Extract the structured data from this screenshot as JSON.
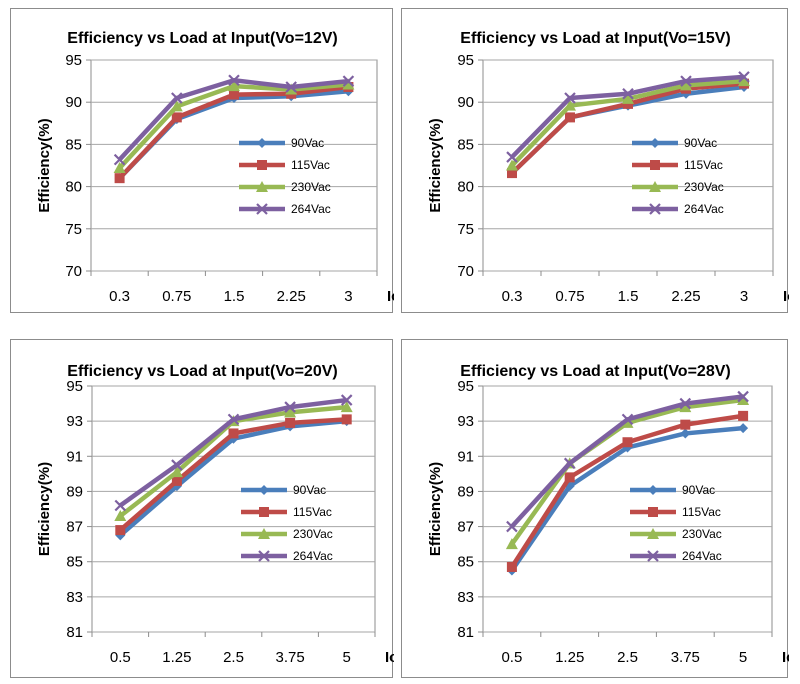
{
  "chart_data": [
    {
      "type": "line",
      "title": "Efficiency vs Load at Input(Vo=12V)",
      "xlabel": "Io(A)",
      "ylabel": "Efficiency(%)",
      "categories": [
        "0.3",
        "0.75",
        "1.5",
        "2.25",
        "3"
      ],
      "ylim": [
        70,
        95
      ],
      "yticks": [
        70,
        75,
        80,
        85,
        90,
        95
      ],
      "grid": true,
      "legend_position": "center-right",
      "series": [
        {
          "name": "90Vac",
          "color": "#4a7ebb",
          "marker": "diamond",
          "values": [
            81.0,
            88.0,
            90.5,
            90.7,
            91.3
          ]
        },
        {
          "name": "115Vac",
          "color": "#be4b48",
          "marker": "square",
          "values": [
            81.0,
            88.2,
            90.9,
            91.0,
            91.8
          ]
        },
        {
          "name": "230Vac",
          "color": "#98b954",
          "marker": "triangle",
          "values": [
            82.2,
            89.5,
            91.9,
            91.5,
            92.1
          ]
        },
        {
          "name": "264Vac",
          "color": "#7d60a0",
          "marker": "x",
          "values": [
            83.2,
            90.5,
            92.6,
            91.8,
            92.5
          ]
        }
      ]
    },
    {
      "type": "line",
      "title": "Efficiency vs Load at Input(Vo=15V)",
      "xlabel": "Io(A)",
      "ylabel": "Efficiency(%)",
      "categories": [
        "0.3",
        "0.75",
        "1.5",
        "2.25",
        "3"
      ],
      "ylim": [
        70,
        95
      ],
      "yticks": [
        70,
        75,
        80,
        85,
        90,
        95
      ],
      "grid": true,
      "legend_position": "center-right",
      "series": [
        {
          "name": "90Vac",
          "color": "#4a7ebb",
          "marker": "diamond",
          "values": [
            81.6,
            88.2,
            89.6,
            91.0,
            91.8
          ]
        },
        {
          "name": "115Vac",
          "color": "#be4b48",
          "marker": "square",
          "values": [
            81.6,
            88.2,
            89.8,
            91.6,
            92.2
          ]
        },
        {
          "name": "230Vac",
          "color": "#98b954",
          "marker": "triangle",
          "values": [
            82.5,
            89.6,
            90.4,
            92.0,
            92.5
          ]
        },
        {
          "name": "264Vac",
          "color": "#7d60a0",
          "marker": "x",
          "values": [
            83.5,
            90.5,
            91.0,
            92.5,
            93.0
          ]
        }
      ]
    },
    {
      "type": "line",
      "title": "Efficiency vs Load at Input(Vo=20V)",
      "xlabel": "Io(A)",
      "ylabel": "Efficiency(%)",
      "categories": [
        "0.5",
        "1.25",
        "2.5",
        "3.75",
        "5"
      ],
      "ylim": [
        81,
        95
      ],
      "yticks": [
        81,
        83,
        85,
        87,
        89,
        91,
        93,
        95
      ],
      "grid": true,
      "legend_position": "center-right",
      "series": [
        {
          "name": "90Vac",
          "color": "#4a7ebb",
          "marker": "diamond",
          "values": [
            86.5,
            89.3,
            92.0,
            92.7,
            93.0
          ]
        },
        {
          "name": "115Vac",
          "color": "#be4b48",
          "marker": "square",
          "values": [
            86.8,
            89.6,
            92.3,
            92.9,
            93.1
          ]
        },
        {
          "name": "230Vac",
          "color": "#98b954",
          "marker": "triangle",
          "values": [
            87.6,
            90.1,
            93.0,
            93.5,
            93.8
          ]
        },
        {
          "name": "264Vac",
          "color": "#7d60a0",
          "marker": "x",
          "values": [
            88.2,
            90.5,
            93.1,
            93.8,
            94.2
          ]
        }
      ]
    },
    {
      "type": "line",
      "title": "Efficiency vs Load at Input(Vo=28V)",
      "xlabel": "Io(A)",
      "ylabel": "Efficiency(%)",
      "categories": [
        "0.5",
        "1.25",
        "2.5",
        "3.75",
        "5"
      ],
      "ylim": [
        81,
        95
      ],
      "yticks": [
        81,
        83,
        85,
        87,
        89,
        91,
        93,
        95
      ],
      "grid": true,
      "legend_position": "center-right",
      "series": [
        {
          "name": "90Vac",
          "color": "#4a7ebb",
          "marker": "diamond",
          "values": [
            84.5,
            89.3,
            91.5,
            92.3,
            92.6
          ]
        },
        {
          "name": "115Vac",
          "color": "#be4b48",
          "marker": "square",
          "values": [
            84.7,
            89.8,
            91.8,
            92.8,
            93.3
          ]
        },
        {
          "name": "230Vac",
          "color": "#98b954",
          "marker": "triangle",
          "values": [
            86.0,
            90.6,
            92.9,
            93.8,
            94.2
          ]
        },
        {
          "name": "264Vac",
          "color": "#7d60a0",
          "marker": "x",
          "values": [
            87.0,
            90.6,
            93.1,
            94.0,
            94.4
          ]
        }
      ]
    }
  ]
}
